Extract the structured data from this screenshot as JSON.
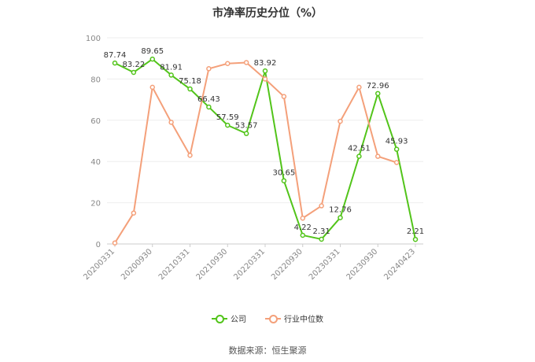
{
  "chart_data": {
    "type": "line",
    "title": "市净率历史分位（%）",
    "ylim": [
      0,
      100
    ],
    "yticks": [
      0,
      20,
      40,
      60,
      80,
      100
    ],
    "grid": true,
    "legend_position": "bottom",
    "categories": [
      "20200331",
      "",
      "20200930",
      "",
      "20210331",
      "",
      "20210930",
      "",
      "20220331",
      "",
      "20220930",
      "",
      "20230331",
      "",
      "20230930",
      "",
      "20240423"
    ],
    "xtick_labels": [
      "20200331",
      "20200930",
      "20210331",
      "20210930",
      "20220331",
      "20220930",
      "20230331",
      "20230930",
      "20240423"
    ],
    "series": [
      {
        "name": "公司",
        "color": "#52c41a",
        "values": [
          87.74,
          83.22,
          89.65,
          81.91,
          75.18,
          66.43,
          57.59,
          53.57,
          83.92,
          30.65,
          4.22,
          2.31,
          12.76,
          42.51,
          72.96,
          45.93,
          2.21
        ],
        "labels": [
          "87.74",
          "83.22",
          "89.65",
          "81.91",
          "75.18",
          "66.43",
          "57.59",
          "53.57",
          "83.92",
          "30.65",
          "4.22",
          "2.31",
          "12.76",
          "42.51",
          "72.96",
          "45.93",
          "2.21"
        ]
      },
      {
        "name": "行业中位数",
        "color": "#f4a07a",
        "values": [
          0.5,
          15,
          76,
          59,
          43,
          85,
          87.5,
          88,
          80,
          71.5,
          12.5,
          18.5,
          59.5,
          76,
          42.5,
          39.5,
          null
        ]
      }
    ]
  },
  "source_note": "数据来源：恒生聚源"
}
